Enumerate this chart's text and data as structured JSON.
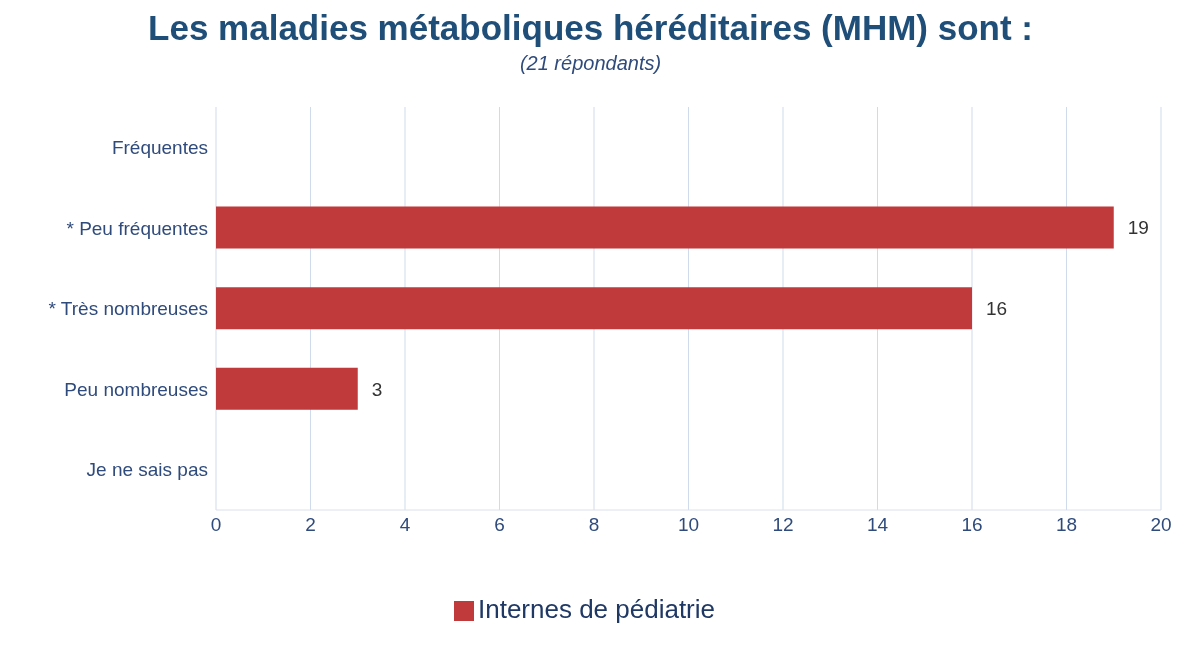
{
  "chart_data": {
    "type": "bar",
    "orientation": "horizontal",
    "title": "Les maladies métaboliques héréditaires (MHM) sont :",
    "subtitle": "(21 répondants)",
    "categories": [
      "Fréquentes",
      "* Peu fréquentes",
      "* Très nombreuses",
      "Peu nombreuses",
      "Je ne sais pas"
    ],
    "series": [
      {
        "name": "Internes de pédiatrie",
        "color": "#c0393b",
        "values": [
          0,
          19,
          16,
          3,
          0
        ],
        "value_labels": [
          null,
          "19",
          "16",
          "3",
          null
        ]
      }
    ],
    "xlim": [
      0,
      20
    ],
    "xticks": [
      0,
      2,
      4,
      6,
      8,
      10,
      12,
      14,
      16,
      18,
      20
    ],
    "grid": "x",
    "legend": "bottom"
  }
}
